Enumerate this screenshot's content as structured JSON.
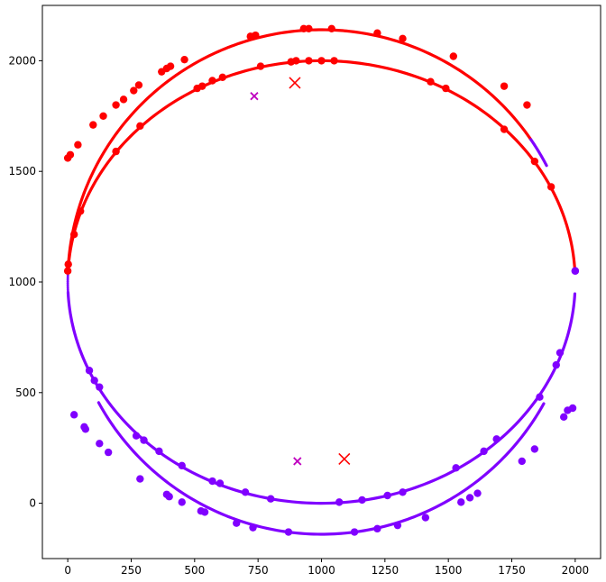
{
  "chart_data": {
    "type": "scatter",
    "title": "",
    "xlabel": "",
    "ylabel": "",
    "xlim": [
      -100,
      2100
    ],
    "ylim": [
      -250,
      2250
    ],
    "x_ticks": [
      0,
      250,
      500,
      750,
      1000,
      1250,
      1500,
      1750,
      2000
    ],
    "y_ticks": [
      0,
      500,
      1000,
      1500,
      2000
    ],
    "grid": false,
    "colors": {
      "red": "#ff0000",
      "purple": "#8000ff",
      "magenta": "#bf00bf"
    },
    "curves": [
      {
        "cx": 1000,
        "cy": 1000,
        "rx": 1000,
        "ry": 1000,
        "t_start": 0.05,
        "t_end": 3.09,
        "color": "red"
      },
      {
        "cx": 1000,
        "cy": 1000,
        "rx": 1000,
        "ry": 1000,
        "t_start": 3.19,
        "t_end": 6.23,
        "color": "purple"
      },
      {
        "cx": 1000,
        "cy": 1000,
        "rx": 1000,
        "ry": 1000,
        "t_start": 3.09,
        "t_end": 3.19,
        "color": "purple",
        "dotted": true
      },
      {
        "cx": 1000,
        "cy": 1000,
        "rx": 1000,
        "ry": 1140,
        "t_start": 0.6,
        "t_end": 2.78,
        "color": "red"
      },
      {
        "cx": 1000,
        "cy": 1000,
        "rx": 1000,
        "ry": 1140,
        "t_start": 2.78,
        "t_end": 3.1,
        "color": "red"
      },
      {
        "cx": 1000,
        "cy": 1000,
        "rx": 1000,
        "ry": 1140,
        "t_start": 0.48,
        "t_end": 0.6,
        "color": "purple"
      },
      {
        "cx": 1000,
        "cy": 1000,
        "rx": 1000,
        "ry": 1140,
        "t_start": 3.64,
        "t_end": 5.78,
        "color": "purple"
      }
    ],
    "series": [
      {
        "name": "red points",
        "color": "red",
        "points": [
          [
            0,
            1050
          ],
          [
            2,
            1080
          ],
          [
            25,
            1215
          ],
          [
            50,
            1320
          ],
          [
            190,
            1590
          ],
          [
            285,
            1705
          ],
          [
            510,
            1875
          ],
          [
            530,
            1885
          ],
          [
            570,
            1910
          ],
          [
            610,
            1925
          ],
          [
            760,
            1975
          ],
          [
            880,
            1995
          ],
          [
            900,
            2000
          ],
          [
            950,
            2000
          ],
          [
            1000,
            2000
          ],
          [
            1050,
            2000
          ],
          [
            1430,
            1905
          ],
          [
            1490,
            1875
          ],
          [
            1720,
            1690
          ],
          [
            1840,
            1545
          ],
          [
            1905,
            1430
          ],
          [
            0,
            1560
          ],
          [
            10,
            1575
          ],
          [
            40,
            1620
          ],
          [
            100,
            1710
          ],
          [
            140,
            1750
          ],
          [
            190,
            1800
          ],
          [
            220,
            1825
          ],
          [
            260,
            1865
          ],
          [
            280,
            1890
          ],
          [
            370,
            1950
          ],
          [
            390,
            1965
          ],
          [
            405,
            1975
          ],
          [
            460,
            2005
          ],
          [
            720,
            2110
          ],
          [
            740,
            2115
          ],
          [
            930,
            2145
          ],
          [
            950,
            2145
          ],
          [
            1040,
            2145
          ],
          [
            1220,
            2125
          ],
          [
            1320,
            2100
          ],
          [
            1520,
            2020
          ],
          [
            1720,
            1885
          ],
          [
            1810,
            1800
          ]
        ]
      },
      {
        "name": "purple points",
        "color": "purple",
        "points": [
          [
            2000,
            1050
          ],
          [
            1940,
            680
          ],
          [
            1925,
            625
          ],
          [
            1860,
            480
          ],
          [
            1690,
            290
          ],
          [
            1640,
            235
          ],
          [
            1530,
            160
          ],
          [
            1320,
            50
          ],
          [
            1260,
            35
          ],
          [
            1160,
            15
          ],
          [
            1070,
            5
          ],
          [
            800,
            20
          ],
          [
            700,
            50
          ],
          [
            600,
            90
          ],
          [
            570,
            100
          ],
          [
            450,
            170
          ],
          [
            360,
            235
          ],
          [
            300,
            285
          ],
          [
            270,
            305
          ],
          [
            125,
            525
          ],
          [
            105,
            555
          ],
          [
            85,
            600
          ],
          [
            2000,
            1050
          ],
          [
            1990,
            430
          ],
          [
            1970,
            420
          ],
          [
            1955,
            390
          ],
          [
            1840,
            245
          ],
          [
            1790,
            190
          ],
          [
            1615,
            45
          ],
          [
            1585,
            25
          ],
          [
            1550,
            5
          ],
          [
            1410,
            -65
          ],
          [
            1300,
            -100
          ],
          [
            1220,
            -115
          ],
          [
            1130,
            -130
          ],
          [
            870,
            -130
          ],
          [
            730,
            -110
          ],
          [
            665,
            -90
          ],
          [
            540,
            -40
          ],
          [
            525,
            -35
          ],
          [
            450,
            5
          ],
          [
            400,
            30
          ],
          [
            390,
            40
          ],
          [
            285,
            110
          ],
          [
            160,
            230
          ],
          [
            125,
            270
          ],
          [
            70,
            335
          ],
          [
            65,
            345
          ],
          [
            25,
            400
          ]
        ]
      },
      {
        "name": "red markers",
        "color": "red",
        "marker": "x",
        "points": [
          [
            895,
            1900
          ],
          [
            1090,
            200
          ]
        ]
      },
      {
        "name": "magenta markers",
        "color": "magenta",
        "marker": "x",
        "points": [
          [
            735,
            1840
          ],
          [
            905,
            190
          ]
        ]
      }
    ]
  }
}
